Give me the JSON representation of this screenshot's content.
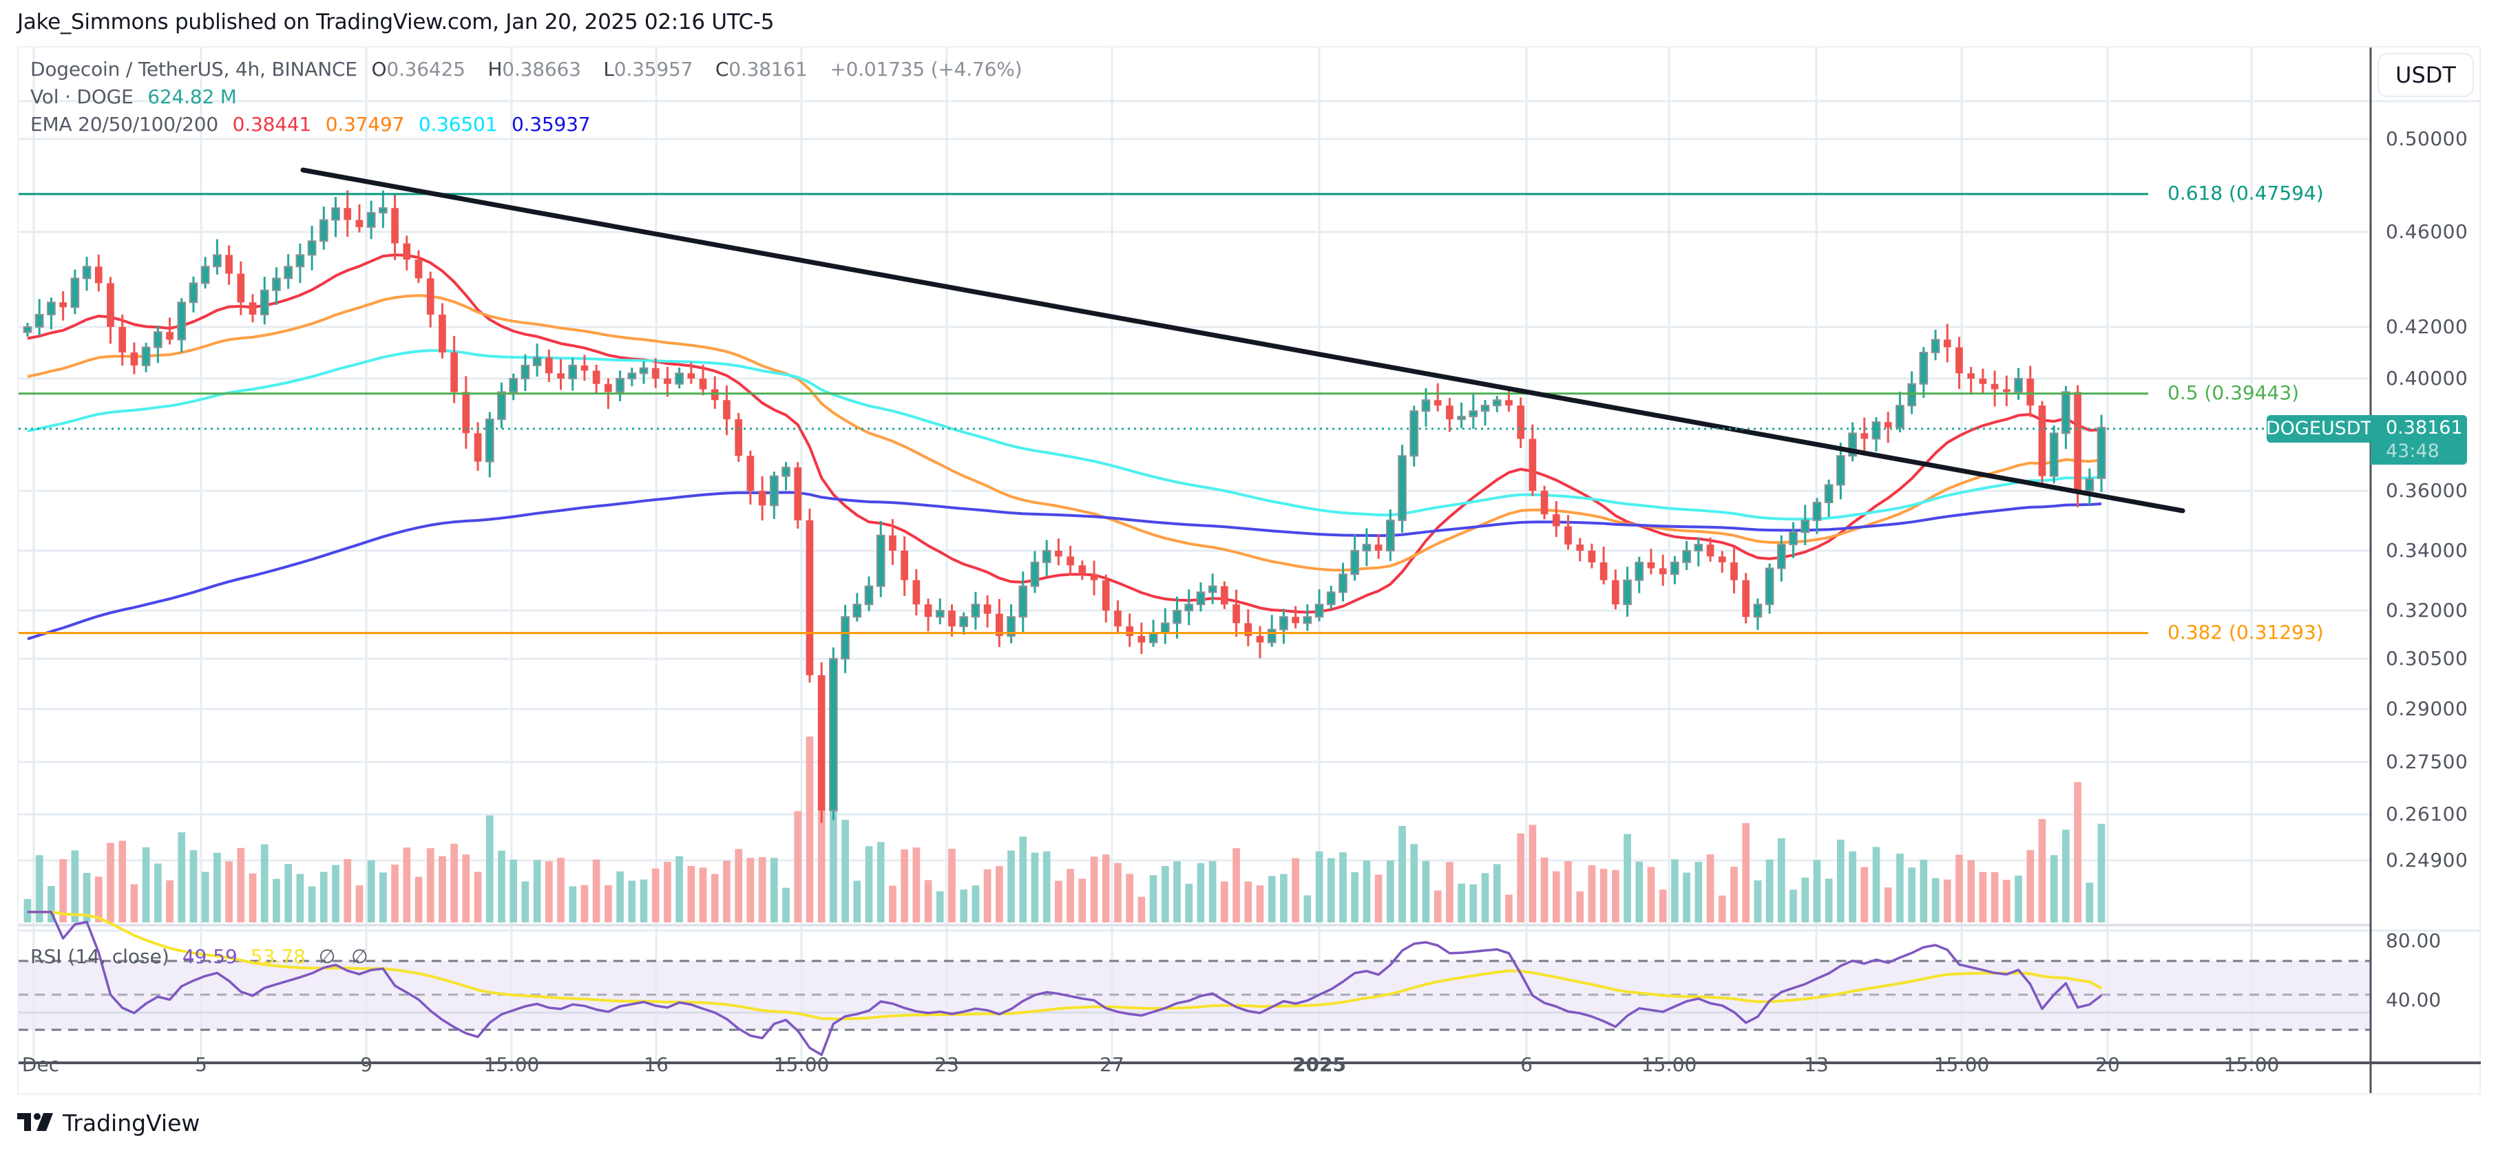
{
  "header": {
    "publisher_line": "Jake_Simmons published on TradingView.com, Jan 20, 2025 02:16 UTC-5"
  },
  "legend": {
    "symbol_line": "Dogecoin / TetherUS, 4h, BINANCE",
    "ohlc": {
      "o_label": "O",
      "o": "0.36425",
      "h_label": "H",
      "h": "0.38663",
      "l_label": "L",
      "l": "0.35957",
      "c_label": "C",
      "c": "0.38161",
      "change": "+0.01735 (+4.76%)"
    },
    "volume_label": "Vol · DOGE",
    "volume_value": "624.82 M",
    "ema_label": "EMA 20/50/100/200",
    "ema_values": [
      {
        "value": "0.38441",
        "color": "#f23645"
      },
      {
        "value": "0.37497",
        "color": "#ff7f0e"
      },
      {
        "value": "0.36501",
        "color": "#00e5ff"
      },
      {
        "value": "0.35937",
        "color": "#1010e0"
      }
    ]
  },
  "currency_button": "USDT",
  "price_tag": {
    "symbol": "DOGEUSDT",
    "price": "0.38161",
    "countdown": "43:48",
    "color": "#26a69a"
  },
  "fib_levels": [
    {
      "label": "0.618 (0.47594)",
      "price": 0.47594,
      "color": "#089981"
    },
    {
      "label": "0.5 (0.39443)",
      "price": 0.39443,
      "color": "#4caf50"
    },
    {
      "label": "0.382 (0.31293)",
      "price": 0.31293,
      "color": "#ff9800"
    }
  ],
  "rsi": {
    "title": "RSI (14, close)",
    "value": "49.59",
    "ma_value": "53.78",
    "extra1": "∅",
    "extra2": "∅",
    "line_color": "#7e57c2",
    "ma_color": "#f7e32c",
    "axis_labels": [
      "80.00",
      "40.00"
    ]
  },
  "footer": {
    "brand": "TradingView"
  },
  "chart_data": {
    "type": "candlestick",
    "title": "Dogecoin / TetherUS, 4h, BINANCE",
    "xlabel": "",
    "ylabel": "USDT",
    "y_scale": "log",
    "ylim": [
      0.243,
      0.52
    ],
    "y_ticks": [
      "0.50000",
      "0.46000",
      "0.42000",
      "0.40000",
      "0.36000",
      "0.34000",
      "0.32000",
      "0.30500",
      "0.29000",
      "0.27500",
      "0.26100",
      "0.24900"
    ],
    "y_tick_values": [
      0.5,
      0.46,
      0.42,
      0.4,
      0.36,
      0.34,
      0.32,
      0.305,
      0.29,
      0.275,
      0.261,
      0.249
    ],
    "x_ticks": [
      "Dec",
      "5",
      "9",
      "15:00",
      "16",
      "15:00",
      "23",
      "27",
      "2025",
      "6",
      "15:00",
      "13",
      "15:00",
      "20",
      "15:00"
    ],
    "grid": true,
    "last_candle": {
      "open": 0.36425,
      "high": 0.38663,
      "low": 0.35957,
      "close": 0.38161
    },
    "close_path": [
      0.42,
      0.425,
      0.43,
      0.428,
      0.44,
      0.445,
      0.438,
      0.42,
      0.41,
      0.405,
      0.412,
      0.418,
      0.415,
      0.43,
      0.438,
      0.445,
      0.45,
      0.442,
      0.43,
      0.425,
      0.435,
      0.44,
      0.445,
      0.45,
      0.456,
      0.465,
      0.47,
      0.465,
      0.462,
      0.468,
      0.47,
      0.455,
      0.448,
      0.44,
      0.425,
      0.41,
      0.395,
      0.38,
      0.37,
      0.385,
      0.395,
      0.4,
      0.405,
      0.408,
      0.402,
      0.4,
      0.405,
      0.403,
      0.398,
      0.395,
      0.4,
      0.402,
      0.404,
      0.4,
      0.398,
      0.402,
      0.4,
      0.396,
      0.392,
      0.385,
      0.372,
      0.36,
      0.355,
      0.365,
      0.368,
      0.35,
      0.3,
      0.262,
      0.305,
      0.318,
      0.322,
      0.328,
      0.345,
      0.34,
      0.33,
      0.322,
      0.318,
      0.32,
      0.315,
      0.318,
      0.322,
      0.319,
      0.312,
      0.318,
      0.328,
      0.336,
      0.34,
      0.338,
      0.335,
      0.332,
      0.33,
      0.32,
      0.315,
      0.312,
      0.31,
      0.313,
      0.316,
      0.32,
      0.322,
      0.326,
      0.328,
      0.322,
      0.316,
      0.312,
      0.31,
      0.314,
      0.318,
      0.316,
      0.318,
      0.322,
      0.326,
      0.332,
      0.34,
      0.342,
      0.34,
      0.35,
      0.372,
      0.388,
      0.392,
      0.39,
      0.385,
      0.386,
      0.388,
      0.39,
      0.392,
      0.39,
      0.378,
      0.36,
      0.352,
      0.348,
      0.342,
      0.34,
      0.336,
      0.33,
      0.322,
      0.33,
      0.336,
      0.334,
      0.332,
      0.336,
      0.34,
      0.342,
      0.338,
      0.336,
      0.33,
      0.318,
      0.322,
      0.334,
      0.342,
      0.346,
      0.35,
      0.356,
      0.362,
      0.372,
      0.38,
      0.378,
      0.384,
      0.382,
      0.39,
      0.398,
      0.41,
      0.415,
      0.412,
      0.402,
      0.4,
      0.398,
      0.396,
      0.395,
      0.4,
      0.39,
      0.365,
      0.38,
      0.395,
      0.36,
      0.364,
      0.382
    ],
    "volume_unit": "DOGE",
    "last_volume": "624.82 M",
    "ema": [
      {
        "name": "EMA 20",
        "last": 0.38441,
        "color": "#f23645"
      },
      {
        "name": "EMA 50",
        "last": 0.37497,
        "color": "#ff9f43"
      },
      {
        "name": "EMA 100",
        "last": 0.36501,
        "color": "#4df0f0"
      },
      {
        "name": "EMA 200",
        "last": 0.35937,
        "color": "#4a47e8"
      }
    ],
    "trendline": {
      "from_price": 0.486,
      "to_price": 0.355,
      "color": "#131722"
    },
    "fib_retracements": [
      {
        "level": 0.618,
        "price": 0.47594
      },
      {
        "level": 0.5,
        "price": 0.39443
      },
      {
        "level": 0.382,
        "price": 0.31293
      }
    ],
    "rsi": {
      "period": 14,
      "value": 49.59,
      "ma": 53.78,
      "bands": [
        70,
        50,
        30
      ]
    }
  }
}
